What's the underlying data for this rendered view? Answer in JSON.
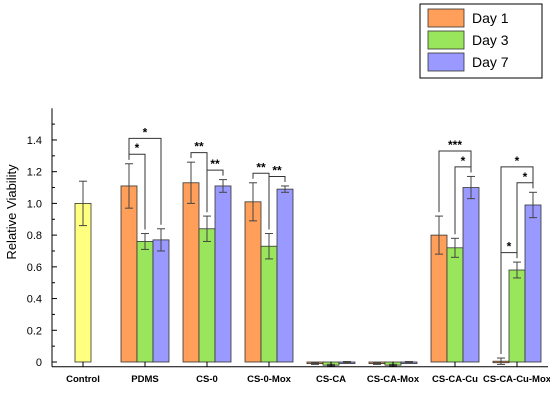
{
  "chart_data": {
    "type": "bar",
    "title": "",
    "xlabel": "",
    "ylabel": "Relative Viability",
    "ylim": [
      -0.03,
      1.6
    ],
    "yticks": [
      "0",
      "0.2",
      "0.4",
      "0.6",
      "0.8",
      "1.0",
      "1.2",
      "1.4"
    ],
    "categories": [
      "Control",
      "PDMS",
      "CS-0",
      "CS-0-Mox",
      "CS-CA",
      "CS-CA-Mox",
      "CS-CA-Cu",
      "CS-CA-Cu-Mox"
    ],
    "legend_position": "top-right",
    "control": {
      "value": 1.0,
      "error": 0.14,
      "color": "#ffff80"
    },
    "series": [
      {
        "name": "Day 1",
        "color": "#ff9f5a",
        "values": [
          null,
          1.11,
          1.13,
          1.01,
          -0.01,
          -0.01,
          0.8,
          0.005
        ],
        "errors": [
          null,
          0.14,
          0.13,
          0.12,
          0.005,
          0.005,
          0.12,
          0.02
        ]
      },
      {
        "name": "Day 3",
        "color": "#99e55c",
        "values": [
          null,
          0.76,
          0.84,
          0.73,
          -0.02,
          -0.02,
          0.72,
          0.58
        ],
        "errors": [
          null,
          0.05,
          0.08,
          0.08,
          0.005,
          0.005,
          0.06,
          0.05
        ]
      },
      {
        "name": "Day 7",
        "color": "#9999ff",
        "values": [
          null,
          0.77,
          1.11,
          1.09,
          0.0,
          0.0,
          1.1,
          0.99
        ],
        "errors": [
          null,
          0.07,
          0.04,
          0.02,
          0.003,
          0.003,
          0.07,
          0.08
        ]
      }
    ],
    "significance": [
      {
        "category": "PDMS",
        "from": "Day 1",
        "to": "Day 3",
        "label": "*"
      },
      {
        "category": "PDMS",
        "from": "Day 1",
        "to": "Day 7",
        "label": "*"
      },
      {
        "category": "CS-0",
        "from": "Day 1",
        "to": "Day 3",
        "label": "**"
      },
      {
        "category": "CS-0",
        "from": "Day 3",
        "to": "Day 7",
        "label": "**"
      },
      {
        "category": "CS-0-Mox",
        "from": "Day 1",
        "to": "Day 3",
        "label": "**"
      },
      {
        "category": "CS-0-Mox",
        "from": "Day 3",
        "to": "Day 7",
        "label": "**"
      },
      {
        "category": "CS-CA-Cu",
        "from": "Day 1",
        "to": "Day 7",
        "label": "***"
      },
      {
        "category": "CS-CA-Cu",
        "from": "Day 3",
        "to": "Day 7",
        "label": "*"
      },
      {
        "category": "CS-CA-Cu-Mox",
        "from": "Day 1",
        "to": "Day 3",
        "label": "*"
      },
      {
        "category": "CS-CA-Cu-Mox",
        "from": "Day 3",
        "to": "Day 7",
        "label": "*"
      },
      {
        "category": "CS-CA-Cu-Mox",
        "from": "Day 1",
        "to": "Day 7",
        "label": "*"
      }
    ]
  }
}
